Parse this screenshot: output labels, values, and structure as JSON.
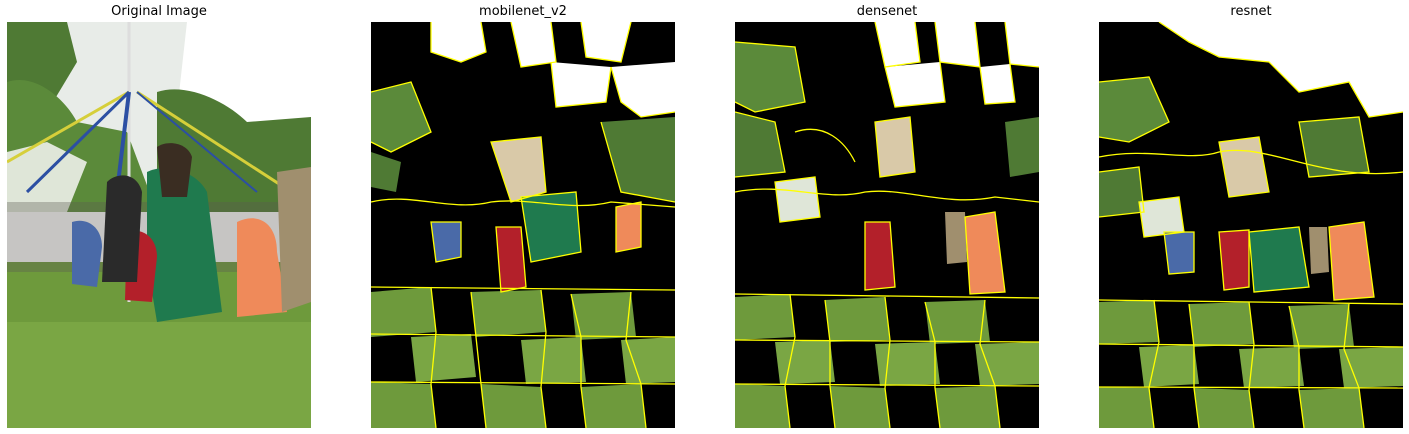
{
  "panels": [
    {
      "title": "Original Image",
      "kind": "photo"
    },
    {
      "title": "mobilenet_v2",
      "kind": "segments",
      "variant": 1
    },
    {
      "title": "densenet",
      "kind": "segments",
      "variant": 2
    },
    {
      "title": "resnet",
      "kind": "segments",
      "variant": 3
    }
  ],
  "colors": {
    "boundary": "#ffff00",
    "mask": "#000000",
    "sky": "#ffffff",
    "grass": "#6e9a3c",
    "foliage": "#4f7a34",
    "green_dress": "#1f7a4e",
    "red_dress": "#b3202a",
    "orange_dress": "#ef8a5a",
    "blue_dress": "#4a6aa8",
    "pole_blue": "#2c4fa3"
  }
}
